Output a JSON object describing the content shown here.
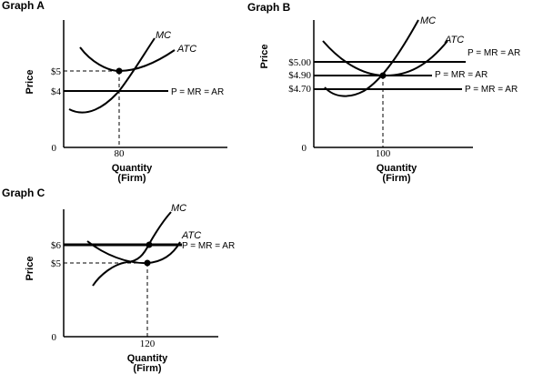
{
  "chart_data": [
    {
      "type": "line",
      "title": "Graph A",
      "xlabel": "Quantity",
      "xlabel_sub": "(Firm)",
      "ylabel": "Price",
      "origin_label": "0",
      "x_ticks": [
        "80"
      ],
      "y_ticks": [
        "$5",
        "$4"
      ],
      "series": [
        {
          "name": "MC",
          "points": [
            [
              60,
              3.0
            ],
            [
              70,
              3.25
            ],
            [
              80,
              4.0
            ],
            [
              90,
              5.5
            ],
            [
              100,
              7.0
            ]
          ]
        },
        {
          "name": "ATC",
          "points": [
            [
              65,
              6.5
            ],
            [
              72,
              5.5
            ],
            [
              80,
              5.0
            ],
            [
              90,
              5.15
            ],
            [
              100,
              5.8
            ]
          ]
        }
      ],
      "hlines": [
        {
          "name": "P = MR = AR",
          "y": 4
        }
      ],
      "highlight": {
        "x": 80,
        "y": 5
      }
    },
    {
      "type": "line",
      "title": "Graph B",
      "xlabel": "Quantity",
      "xlabel_sub": "(Firm)",
      "ylabel": "Price",
      "origin_label": "0",
      "x_ticks": [
        "100"
      ],
      "y_ticks": [
        "$5.00",
        "$4.90",
        "$4.70"
      ],
      "series": [
        {
          "name": "MC",
          "points": [
            [
              60,
              4.7
            ],
            [
              80,
              4.6
            ],
            [
              100,
              4.9
            ],
            [
              120,
              5.5
            ],
            [
              130,
              6.0
            ]
          ]
        },
        {
          "name": "ATC",
          "points": [
            [
              60,
              5.3
            ],
            [
              80,
              5.0
            ],
            [
              100,
              4.9
            ],
            [
              120,
              5.0
            ],
            [
              140,
              5.3
            ]
          ]
        }
      ],
      "hlines": [
        {
          "name": "P = MR = AR",
          "y": 5.0
        },
        {
          "name": "P = MR = AR",
          "y": 4.9
        },
        {
          "name": "P = MR = AR",
          "y": 4.7
        }
      ],
      "highlight": {
        "x": 100,
        "y": 4.9
      }
    },
    {
      "type": "line",
      "title": "Graph C",
      "xlabel": "Quantity",
      "xlabel_sub": "(Firm)",
      "ylabel": "Price",
      "origin_label": "0",
      "x_ticks": [
        "120"
      ],
      "y_ticks": [
        "$6",
        "$5"
      ],
      "series": [
        {
          "name": "MC",
          "points": [
            [
              100,
              4.8
            ],
            [
              110,
              4.6
            ],
            [
              120,
              6.0
            ],
            [
              130,
              7.6
            ]
          ]
        },
        {
          "name": "ATC",
          "points": [
            [
              100,
              5.9
            ],
            [
              110,
              5.3
            ],
            [
              120,
              5.0
            ],
            [
              130,
              5.2
            ],
            [
              140,
              5.8
            ]
          ]
        }
      ],
      "hlines": [
        {
          "name": "P = MR = AR",
          "y": 6
        }
      ],
      "highlight": {
        "x": 120,
        "y": 5
      },
      "highlight2": {
        "x": 120,
        "y": 6
      }
    }
  ]
}
